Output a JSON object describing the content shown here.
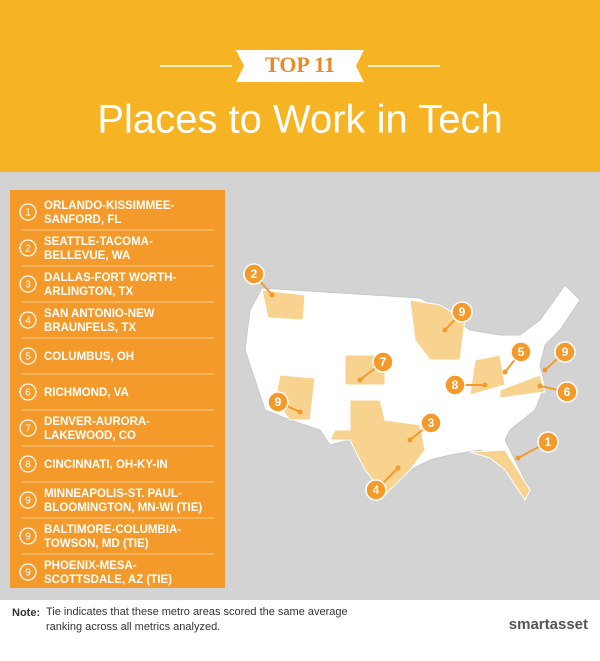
{
  "header": {
    "badge": "TOP 11",
    "title": "Places to Work in Tech"
  },
  "list": {
    "items": [
      {
        "rank": "1",
        "lines": [
          "ORLANDO-KISSIMMEE-",
          "SANFORD, FL"
        ]
      },
      {
        "rank": "2",
        "lines": [
          "SEATTLE-TACOMA-",
          "BELLEVUE, WA"
        ]
      },
      {
        "rank": "3",
        "lines": [
          "DALLAS-FORT WORTH-",
          "ARLINGTON, TX"
        ]
      },
      {
        "rank": "4",
        "lines": [
          "SAN ANTONIO-NEW",
          "BRAUNFELS, TX"
        ]
      },
      {
        "rank": "5",
        "lines": [
          "COLUMBUS, OH"
        ]
      },
      {
        "rank": "6",
        "lines": [
          "RICHMOND, VA"
        ]
      },
      {
        "rank": "7",
        "lines": [
          "DENVER-AURORA-",
          "LAKEWOOD, CO"
        ]
      },
      {
        "rank": "8",
        "lines": [
          "CINCINNATI, OH-KY-IN"
        ]
      },
      {
        "rank": "9",
        "lines": [
          "MINNEAPOLIS-ST. PAUL-",
          "BLOOMINGTON, MN-WI (TIE)"
        ]
      },
      {
        "rank": "9",
        "lines": [
          "BALTIMORE-COLUMBIA-",
          "TOWSON, MD (TIE)"
        ]
      },
      {
        "rank": "9",
        "lines": [
          "PHOENIX-MESA-",
          "SCOTTSDALE, AZ (TIE)"
        ]
      }
    ]
  },
  "map": {
    "markers": [
      "2",
      "9",
      "7",
      "9",
      "5",
      "9",
      "6",
      "8",
      "3",
      "4",
      "1"
    ]
  },
  "footer": {
    "note_label": "Note:",
    "note_text": "Tie indicates that these metro areas scored the same average ranking across all metrics analyzed.",
    "logo": "smartasset"
  }
}
